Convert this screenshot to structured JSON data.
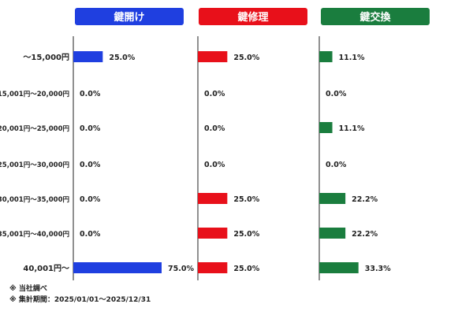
{
  "chart_data": {
    "type": "bar",
    "orientation": "horizontal",
    "categories": [
      "～15,000円",
      "15,001円～20,000円",
      "20,001円～25,000円",
      "25,001円～30,000円",
      "30,001円～35,000円",
      "35,001円～40,000円",
      "40,001円～"
    ],
    "series": [
      {
        "name": "鍵開け",
        "color": "#1f3fe0",
        "values": [
          25.0,
          0.0,
          0.0,
          0.0,
          0.0,
          0.0,
          75.0
        ],
        "labels": [
          "25.0%",
          "0.0%",
          "0.0%",
          "0.0%",
          "0.0%",
          "0.0%",
          "75.0%"
        ]
      },
      {
        "name": "鍵修理",
        "color": "#e8101a",
        "values": [
          25.0,
          0.0,
          0.0,
          0.0,
          25.0,
          25.0,
          25.0
        ],
        "labels": [
          "25.0%",
          "0.0%",
          "0.0%",
          "0.0%",
          "25.0%",
          "25.0%",
          "25.0%"
        ]
      },
      {
        "name": "鍵交換",
        "color": "#1a7d3e",
        "values": [
          11.1,
          0.0,
          11.1,
          0.0,
          22.2,
          22.2,
          33.3
        ],
        "labels": [
          "11.1%",
          "0.0%",
          "11.1%",
          "0.0%",
          "22.2%",
          "22.2%",
          "33.3%"
        ]
      }
    ],
    "xlim": [
      0,
      75
    ],
    "legend": "panel headers",
    "grid": false
  },
  "notes": [
    "※ 当社調べ",
    "※ 集計期間：2025/01/01～2025/12/31"
  ]
}
